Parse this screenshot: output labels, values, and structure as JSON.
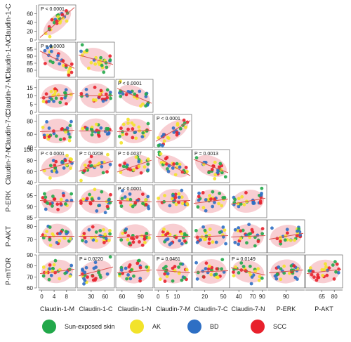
{
  "chart_data": {
    "type": "scatter",
    "title": "",
    "layout": "scatterplot-matrix (lower triangle)",
    "grid": false,
    "legend_position": "bottom",
    "variables": [
      "Claudin-1-M",
      "Claudin-1-C",
      "Claudin-1-N",
      "Claudin-7-M",
      "Claudin-7-C",
      "Claudin-7-N",
      "P-ERK",
      "P-AKT",
      "P-mTOR"
    ],
    "column_labels": [
      "Claudin-1-M",
      "Claudin-1-C",
      "Claudin-1-N",
      "Claudin-7-M",
      "Claudin-7-C",
      "Claudin-7-N",
      "P-ERK",
      "P-AKT"
    ],
    "row_labels": [
      "Claudin-1-C",
      "Claudin-1-N",
      "Claudin-7-M",
      "Claudin-7-C",
      "Claudin-7-N",
      "P-ERK",
      "P-AKT",
      "P-mTOR"
    ],
    "row_ranges": [
      [
        0,
        80
      ],
      [
        75,
        100
      ],
      [
        0,
        20
      ],
      [
        40,
        90
      ],
      [
        40,
        100
      ],
      [
        85,
        100
      ],
      [
        60,
        85
      ],
      [
        60,
        90
      ]
    ],
    "col_ranges": [
      [
        -1,
        11
      ],
      [
        0,
        80
      ],
      [
        50,
        110
      ],
      [
        -2,
        18
      ],
      [
        0,
        60
      ],
      [
        20,
        100
      ],
      [
        70,
        110
      ],
      [
        45,
        90
      ]
    ],
    "y_ticks": [
      [
        "0",
        "20",
        "40",
        "60"
      ],
      [
        "80",
        "85",
        "90",
        "95"
      ],
      [
        "0",
        "5",
        "10",
        "15"
      ],
      [
        "40",
        "60",
        "80"
      ],
      [
        "40",
        "60",
        "80",
        "100"
      ],
      [
        "85",
        "90",
        "95"
      ],
      [
        "70",
        "80"
      ],
      [
        "60",
        "70",
        "80",
        "90"
      ]
    ],
    "x_ticks": [
      [
        "0",
        "4",
        "8"
      ],
      [
        "30",
        "60"
      ],
      [
        "60",
        "90"
      ],
      [
        "0",
        "5",
        "10"
      ],
      [
        "20",
        "50"
      ],
      [
        "40",
        "70",
        "90"
      ],
      [
        "90"
      ],
      [
        "65",
        "80"
      ]
    ],
    "x_tick_values": [
      [
        0,
        4,
        8
      ],
      [
        30,
        60
      ],
      [
        60,
        90
      ],
      [
        0,
        5,
        10
      ],
      [
        20,
        50
      ],
      [
        40,
        70,
        90
      ],
      [
        90
      ],
      [
        65,
        80
      ]
    ],
    "groups": [
      {
        "name": "Sun-exposed skin",
        "color": "#22a84a"
      },
      {
        "name": "AK",
        "color": "#f2e32a"
      },
      {
        "name": "BD",
        "color": "#2e6fc4"
      },
      {
        "name": "SCC",
        "color": "#e8212c"
      }
    ],
    "annotations": [
      {
        "row": 0,
        "col": 0,
        "text": "P < 0.0001"
      },
      {
        "row": 1,
        "col": 0,
        "text": "P = 0.0003"
      },
      {
        "row": 2,
        "col": 2,
        "text": "P < 0.0001"
      },
      {
        "row": 3,
        "col": 3,
        "text": "P < 0.0001"
      },
      {
        "row": 4,
        "col": 0,
        "text": "P < 0.0001"
      },
      {
        "row": 4,
        "col": 1,
        "text": "P = 0.0208"
      },
      {
        "row": 4,
        "col": 2,
        "text": "P = 0.0037"
      },
      {
        "row": 4,
        "col": 4,
        "text": "P = 0.0013"
      },
      {
        "row": 5,
        "col": 2,
        "text": "P < 0.0001"
      },
      {
        "row": 7,
        "col": 1,
        "text": "P = 0.0220"
      },
      {
        "row": 7,
        "col": 3,
        "text": "P = 0.0461"
      },
      {
        "row": 7,
        "col": 5,
        "text": "P = 0.0149"
      }
    ],
    "trend_slopes": [
      [
        0.95
      ],
      [
        -0.55,
        -0.3
      ],
      [
        0.15,
        0.0,
        -0.5
      ],
      [
        0.05,
        0.0,
        0.05,
        0.7
      ],
      [
        0.3,
        0.35,
        0.4,
        -0.65,
        -0.45
      ],
      [
        -0.05,
        0.0,
        -0.05,
        0.05,
        0.15,
        0.2
      ],
      [
        0.0,
        0.0,
        0.1,
        0.0,
        0.05,
        0.05,
        0.2
      ],
      [
        0.15,
        0.3,
        0.1,
        -0.1,
        0.05,
        -0.25,
        0.1,
        0.15
      ]
    ]
  }
}
